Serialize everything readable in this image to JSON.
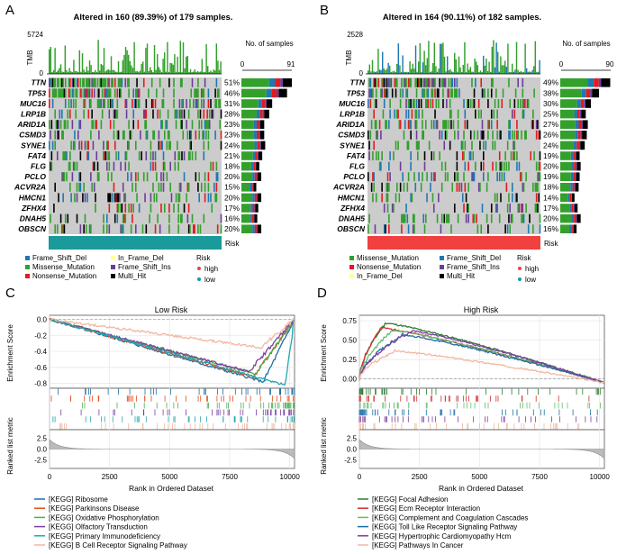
{
  "panels": {
    "A": {
      "letter": "A",
      "title": "Altered in 160 (89.39%) of 179 samples.",
      "tmb_label": "TMB",
      "tmb_max": "5724",
      "tmb_min": "0",
      "samples_label": "No. of samples",
      "samples_min": "0",
      "samples_max": "91",
      "genes": [
        "TTN",
        "TP53",
        "MUC16",
        "LRP1B",
        "ARID1A",
        "CSMD3",
        "SYNE1",
        "FAT4",
        "FLG",
        "PCLO",
        "ACVR2A",
        "HMCN1",
        "ZFHX4",
        "DNAH5",
        "OBSCN"
      ],
      "percents": [
        "51%",
        "46%",
        "31%",
        "28%",
        "23%",
        "23%",
        "24%",
        "21%",
        "18%",
        "20%",
        "15%",
        "20%",
        "17%",
        "16%",
        "20%"
      ],
      "risk_label": "Risk",
      "risk_color": "#1a9a9a",
      "legend": {
        "col1": [
          "Frame_Shift_Del",
          "Missense_Mutation",
          "Nonsense_Mutation"
        ],
        "col2": [
          "In_Frame_Del",
          "Frame_Shift_Ins",
          "Multi_Hit"
        ],
        "risk_title": "Risk",
        "risk_items": [
          "high",
          "low"
        ]
      }
    },
    "B": {
      "letter": "B",
      "title": "Altered in 164 (90.11%) of 182 samples.",
      "tmb_label": "TMB",
      "tmb_max": "2528",
      "tmb_min": "0",
      "samples_label": "No. of samples",
      "samples_min": "0",
      "samples_max": "90",
      "genes": [
        "TTN",
        "TP53",
        "MUC16",
        "LRP1B",
        "ARID1A",
        "CSMD3",
        "SYNE1",
        "FAT4",
        "FLG",
        "PCLO",
        "ACVR2A",
        "HMCN1",
        "ZFHX4",
        "DNAH5",
        "OBSCN"
      ],
      "percents": [
        "49%",
        "38%",
        "30%",
        "25%",
        "27%",
        "26%",
        "24%",
        "19%",
        "20%",
        "19%",
        "18%",
        "14%",
        "17%",
        "20%",
        "16%"
      ],
      "risk_label": "Risk",
      "risk_color": "#f04040",
      "legend": {
        "col1": [
          "Missense_Mutation",
          "Nonsense_Mutation",
          "In_Frame_Del"
        ],
        "col2": [
          "Frame_Shift_Del",
          "Frame_Shift_Ins",
          "Multi_Hit"
        ],
        "risk_title": "Risk",
        "risk_items": [
          "high",
          "low"
        ]
      }
    },
    "C": {
      "letter": "C",
      "title": "Low Risk",
      "y_label_top": "Enrichment Score",
      "y_label_bottom": "Ranked list metric",
      "x_label": "Rank in Ordered Dataset",
      "x_ticks": [
        "0",
        "2500",
        "5000",
        "7500",
        "10000"
      ],
      "es_ticks": [
        "0.0",
        "-0.2",
        "-0.4",
        "-0.6",
        "-0.8"
      ],
      "metric_ticks": [
        "2.5",
        "0.0",
        "-2.5"
      ],
      "legend": [
        "[KEGG] Ribosome",
        "[KEGG] Parkinsons Disease",
        "[KEGG] Oxidative Phosphorylation",
        "[KEGG] Olfactory Transduction",
        "[KEGG] Primary Immunodeficiency",
        "[KEGG] B Cell Receptor Signaling Pathway"
      ]
    },
    "D": {
      "letter": "D",
      "title": "High Risk",
      "y_label_top": "Enrichment Score",
      "y_label_bottom": "Ranked list metric",
      "x_label": "Rank in Ordered Dataset",
      "x_ticks": [
        "0",
        "2500",
        "5000",
        "7500",
        "10000"
      ],
      "es_ticks": [
        "0.75",
        "0.50",
        "0.25",
        "0.00"
      ],
      "metric_ticks": [
        "2.5",
        "0.0",
        "-2.5"
      ],
      "legend": [
        "[KEGG] Focal Adhesion",
        "[KEGG] Ecm Receptor Interaction",
        "[KEGG] Complement and Coagulation Cascades",
        "[KEGG] Toll Like Receptor Signaling Pathway",
        "[KEGG] Hypertrophic Cardiomyopathy Hcm",
        "[KEGG] Pathways In Cancer"
      ]
    }
  },
  "colors": {
    "missense": "#33a02c",
    "frameshift_del": "#1f78b4",
    "frameshift_ins": "#6a3d9a",
    "nonsense": "#e31a1c",
    "inframe_del": "#ffff99",
    "multi_hit": "#000000",
    "background": "#cccccc",
    "gsea_c": [
      "#1f6fa8",
      "#e64a19",
      "#4caf50",
      "#7b3fa0",
      "#26a6b0",
      "#f2b7a0"
    ],
    "gsea_d": [
      "#2e7d32",
      "#d32f2f",
      "#66bb6a",
      "#1f6fa8",
      "#7b3fa0",
      "#f2b7a0"
    ]
  }
}
